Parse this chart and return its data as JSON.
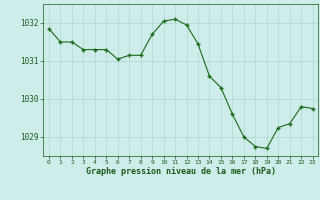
{
  "x": [
    0,
    1,
    2,
    3,
    4,
    5,
    6,
    7,
    8,
    9,
    10,
    11,
    12,
    13,
    14,
    15,
    16,
    17,
    18,
    19,
    20,
    21,
    22,
    23
  ],
  "y": [
    1031.85,
    1031.5,
    1031.5,
    1031.3,
    1031.3,
    1031.3,
    1031.05,
    1031.15,
    1031.15,
    1031.7,
    1032.05,
    1032.1,
    1031.95,
    1031.45,
    1030.6,
    1030.3,
    1029.6,
    1029.0,
    1028.75,
    1028.7,
    1029.25,
    1029.35,
    1029.8,
    1029.75
  ],
  "line_color": "#1a6b1a",
  "marker_color": "#1a6b1a",
  "bg_color": "#ceecea",
  "grid_color": "#b0d8d0",
  "xlabel": "Graphe pression niveau de la mer (hPa)",
  "xlabel_color": "#1a5c1a",
  "tick_color": "#1a5c1a",
  "ylim": [
    1028.5,
    1032.5
  ],
  "yticks": [
    1029,
    1030,
    1031,
    1032
  ],
  "xticks": [
    0,
    1,
    2,
    3,
    4,
    5,
    6,
    7,
    8,
    9,
    10,
    11,
    12,
    13,
    14,
    15,
    16,
    17,
    18,
    19,
    20,
    21,
    22,
    23
  ],
  "fig_width": 3.2,
  "fig_height": 2.0,
  "dpi": 100
}
